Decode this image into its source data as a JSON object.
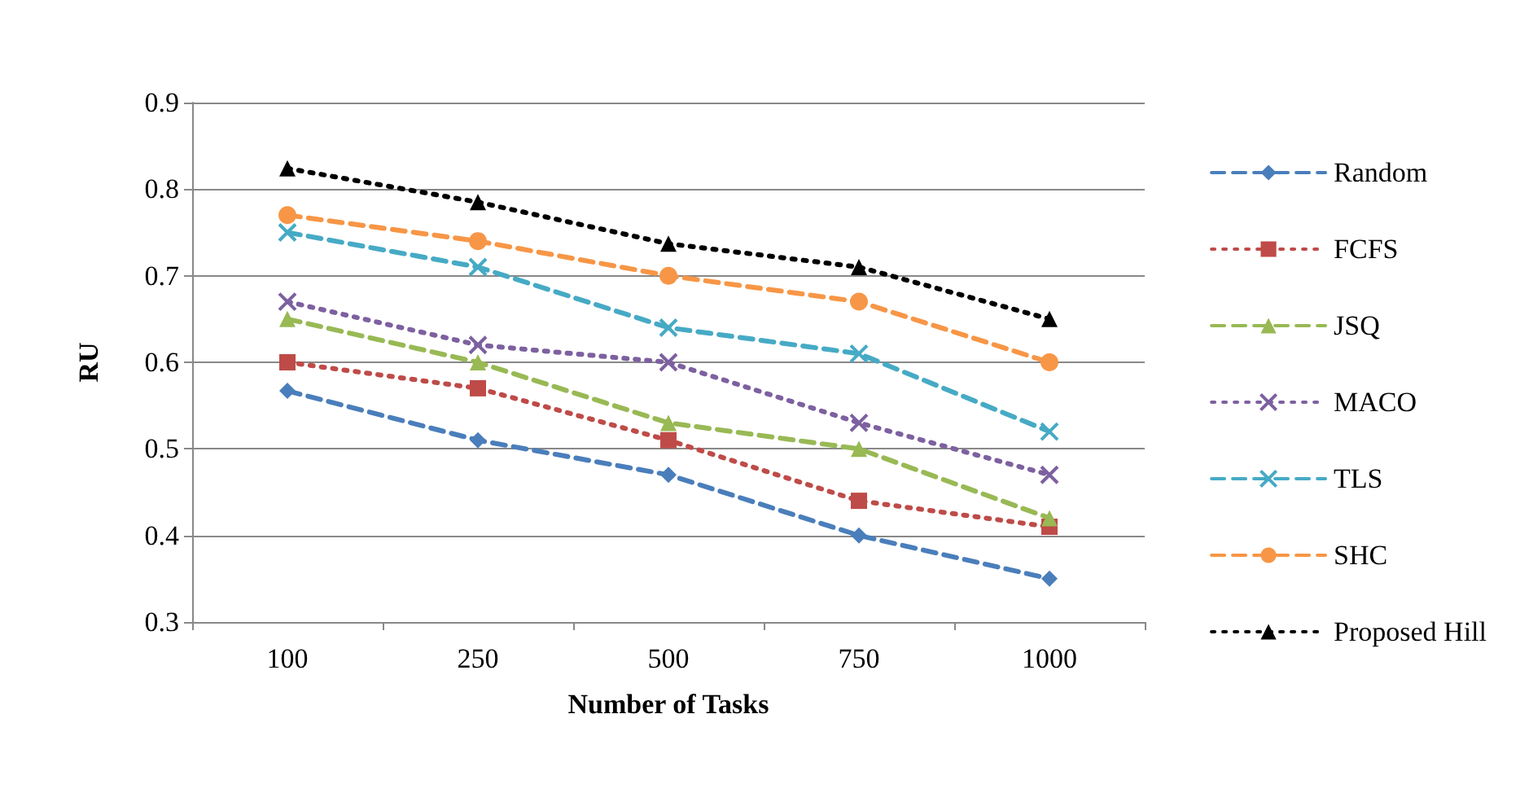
{
  "chart_data": {
    "type": "line",
    "xlabel": "Number of Tasks",
    "ylabel": "RU",
    "categories": [
      "100",
      "250",
      "500",
      "750",
      "1000"
    ],
    "ylim": [
      0.3,
      0.9
    ],
    "yticks": [
      0.3,
      0.4,
      0.5,
      0.6,
      0.7,
      0.8,
      0.9
    ],
    "grid": "y",
    "legend": "right",
    "series": [
      {
        "name": "Random",
        "color": "#4a7ebb",
        "marker": "diamond",
        "line_style": "dashed",
        "values": [
          0.567,
          0.51,
          0.47,
          0.4,
          0.35
        ]
      },
      {
        "name": "FCFS",
        "color": "#be4b48",
        "marker": "square",
        "line_style": "dotted",
        "values": [
          0.6,
          0.57,
          0.51,
          0.44,
          0.41
        ]
      },
      {
        "name": "JSQ",
        "color": "#98b954",
        "marker": "triangle",
        "line_style": "dashed",
        "values": [
          0.65,
          0.6,
          0.53,
          0.5,
          0.42
        ]
      },
      {
        "name": "MACO",
        "color": "#7d60a0",
        "marker": "cross",
        "line_style": "dotted",
        "values": [
          0.67,
          0.62,
          0.6,
          0.53,
          0.47
        ]
      },
      {
        "name": "TLS",
        "color": "#46aac5",
        "marker": "cross",
        "line_style": "dashed",
        "values": [
          0.75,
          0.71,
          0.64,
          0.61,
          0.52
        ]
      },
      {
        "name": "SHC",
        "color": "#f79646",
        "marker": "circle",
        "line_style": "dashed",
        "values": [
          0.77,
          0.74,
          0.7,
          0.67,
          0.6
        ]
      },
      {
        "name": "Proposed Hill",
        "color": "#000000",
        "marker": "triangle",
        "line_style": "dotted",
        "values": [
          0.824,
          0.785,
          0.737,
          0.71,
          0.65
        ]
      }
    ]
  }
}
